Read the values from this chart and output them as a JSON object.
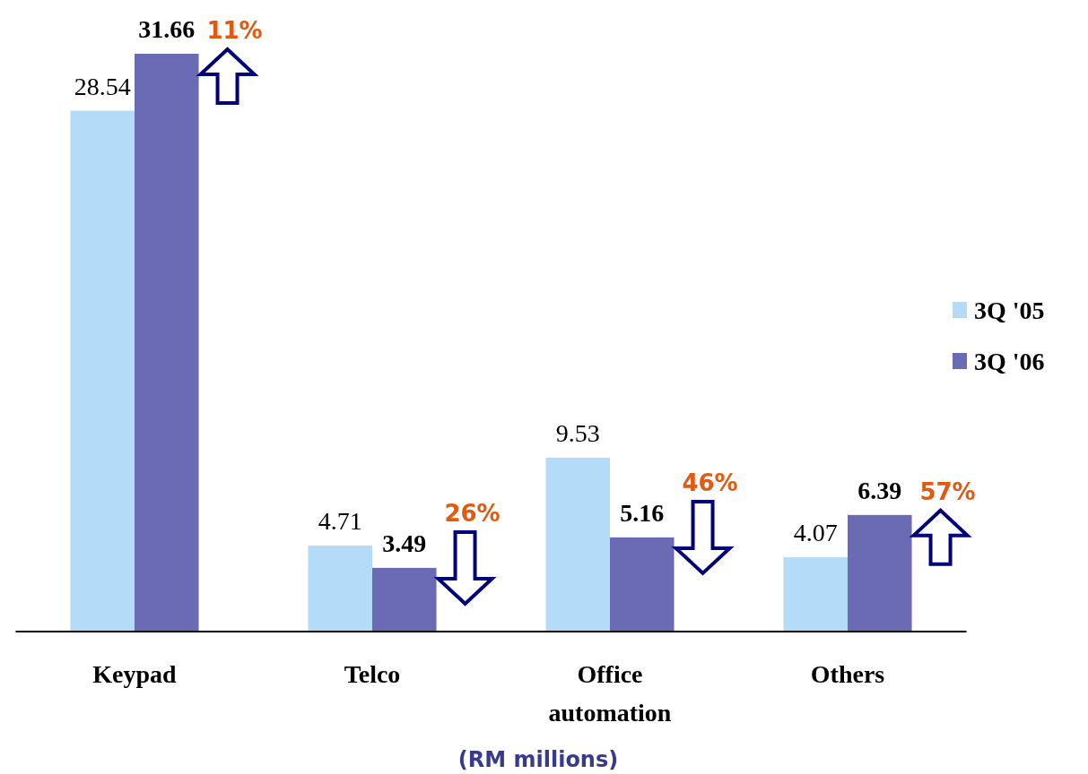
{
  "chart_data": {
    "type": "bar",
    "xlabel": "(RM millions)",
    "categories": [
      "Keypad",
      "Telco",
      "Office automation",
      "Others"
    ],
    "series": [
      {
        "name": "3Q '05",
        "color": "#b4dcf8",
        "values": [
          28.54,
          4.71,
          9.53,
          4.07
        ]
      },
      {
        "name": "3Q '06",
        "color": "#6b6bb5",
        "values": [
          31.66,
          3.49,
          5.16,
          6.39
        ]
      }
    ],
    "data_labels": true,
    "legend": "right",
    "annotations": [
      "11%",
      "26%",
      "46%",
      "57%"
    ]
  }
}
